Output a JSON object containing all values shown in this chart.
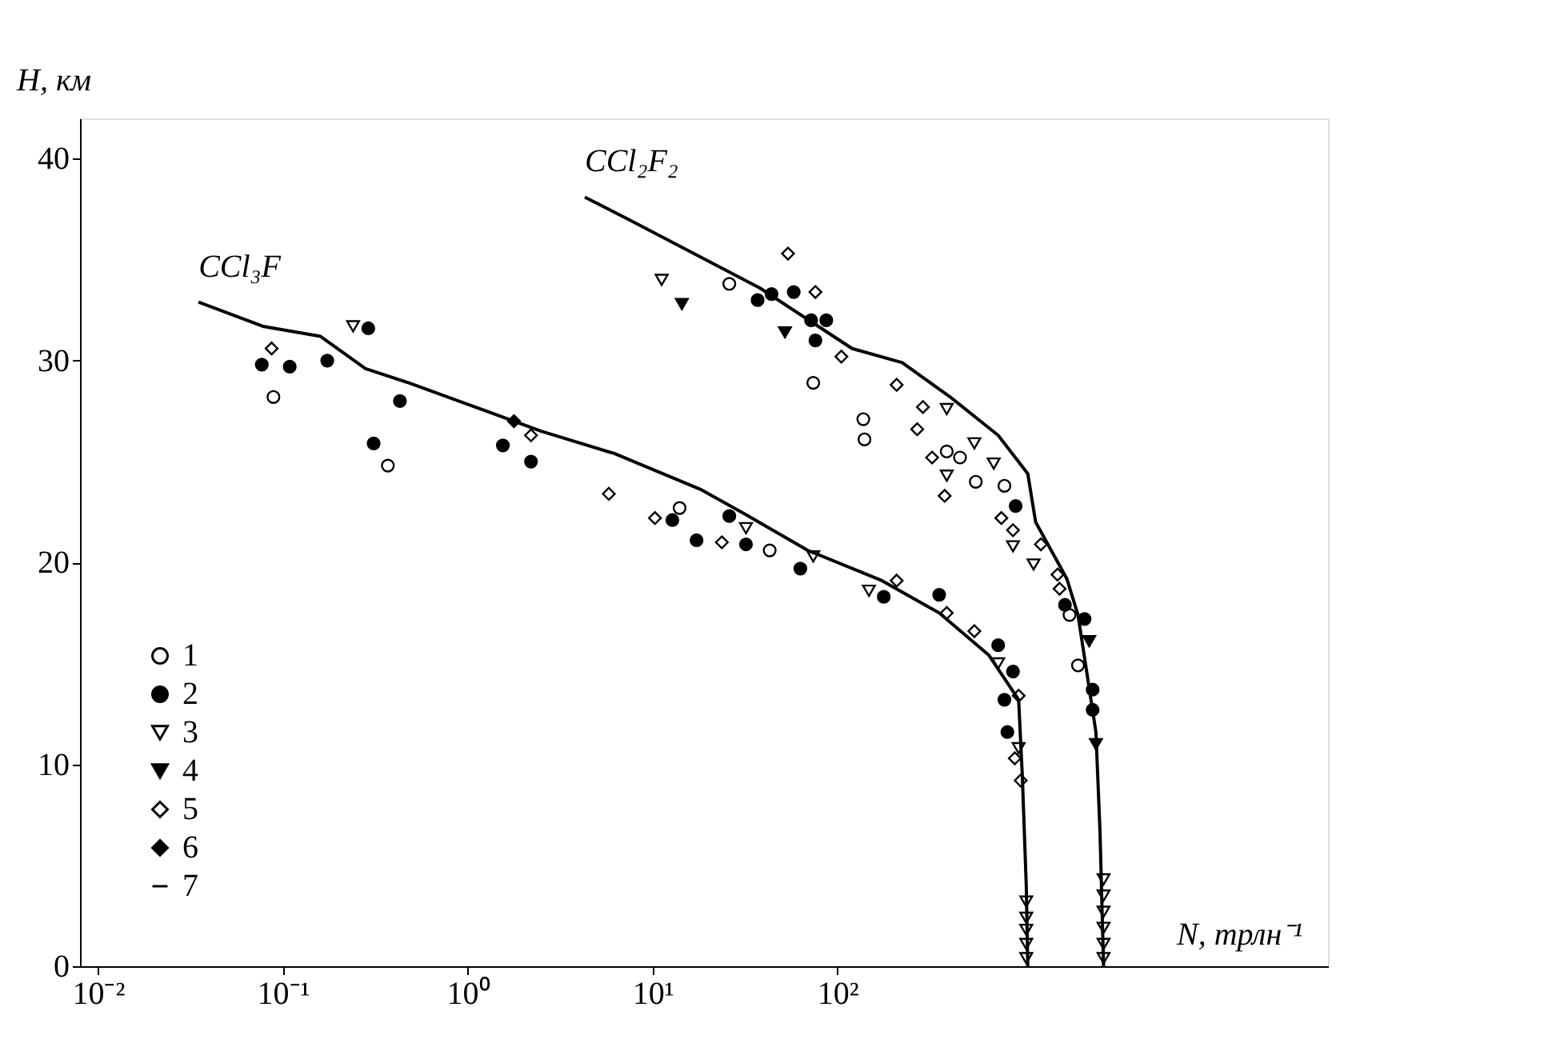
{
  "chart_data": {
    "type": "scatter",
    "xlabel": "N, трлн⁻¹",
    "ylabel": "H, км",
    "log": "x",
    "xlim": [
      0.008,
      45000
    ],
    "ylim": [
      0,
      42
    ],
    "xticks": [
      {
        "value": 0.01,
        "label": "10⁻²"
      },
      {
        "value": 0.1,
        "label": "10⁻¹"
      },
      {
        "value": 1,
        "label": "10⁰"
      },
      {
        "value": 10,
        "label": "10¹"
      },
      {
        "value": 100,
        "label": "10²"
      }
    ],
    "yticks": [
      0,
      10,
      20,
      30,
      40
    ],
    "grid": false,
    "legend": "bottom left",
    "annotations": [
      "CCl₃F",
      "CCl₂F₂"
    ],
    "series": [
      {
        "name": "1",
        "marker": "circle",
        "color": "#ffffff",
        "x": [
          0.089,
          0.37,
          14,
          43,
          26,
          74,
          138,
          140,
          390,
          460,
          560,
          800,
          1800,
          2000
        ],
        "values": [
          28.2,
          24.8,
          22.7,
          20.6,
          33.8,
          28.9,
          27.1,
          26.1,
          25.5,
          25.2,
          24.0,
          23.8,
          17.4,
          14.9
        ]
      },
      {
        "name": "2",
        "marker": "circle",
        "color": "#000000",
        "x": [
          0.077,
          0.109,
          0.174,
          0.29,
          0.43,
          0.31,
          1.55,
          2.2,
          12.8,
          17.3,
          26,
          32,
          63,
          178,
          355,
          740,
          890,
          800,
          830,
          37,
          44,
          58,
          72,
          87,
          76,
          920,
          1700,
          2170,
          2400,
          2400
        ],
        "values": [
          29.8,
          29.7,
          30.0,
          31.6,
          28.0,
          25.9,
          25.8,
          25.0,
          22.1,
          21.1,
          22.3,
          20.9,
          19.7,
          18.3,
          18.4,
          15.9,
          14.6,
          13.2,
          11.6,
          33.0,
          33.3,
          33.4,
          32.0,
          32.0,
          31.0,
          22.8,
          17.9,
          17.2,
          13.7,
          12.7
        ]
      },
      {
        "name": "3",
        "marker": "triangle",
        "color": "#ffffff",
        "x": [
          0.24,
          32,
          74,
          148,
          740,
          955,
          11.2,
          390,
          550,
          390,
          700,
          890,
          1150,
          1050,
          1050,
          1050,
          1050,
          1050,
          2750,
          2750,
          2750,
          2750,
          2750,
          2750
        ],
        "values": [
          31.7,
          21.7,
          20.3,
          18.6,
          15.0,
          10.8,
          34.0,
          27.6,
          25.9,
          24.3,
          24.9,
          20.8,
          19.9,
          3.2,
          2.4,
          1.8,
          1.1,
          0.4,
          4.3,
          3.5,
          2.7,
          1.9,
          1.1,
          0.4
        ]
      },
      {
        "name": "4",
        "marker": "triangle",
        "color": "#000000",
        "x": [
          14.4,
          52,
          2300,
          2500
        ],
        "values": [
          32.8,
          31.4,
          16.1,
          11.0
        ]
      },
      {
        "name": "5",
        "marker": "diamond",
        "color": "#ffffff",
        "x": [
          0.087,
          2.2,
          5.8,
          10.3,
          23.7,
          209,
          390,
          550,
          955,
          910,
          980,
          54,
          76,
          105,
          209,
          290,
          270,
          325,
          380,
          770,
          890,
          1260,
          1550,
          1590
        ],
        "values": [
          30.6,
          26.3,
          23.4,
          22.2,
          21.0,
          19.1,
          17.5,
          16.6,
          13.4,
          10.3,
          9.2,
          35.3,
          33.4,
          30.2,
          28.8,
          27.7,
          26.6,
          25.2,
          23.3,
          22.2,
          21.6,
          20.9,
          19.4,
          18.7
        ]
      },
      {
        "name": "6",
        "marker": "diamond",
        "color": "#000000",
        "x": [
          1.78
        ],
        "values": [
          27.0
        ]
      },
      {
        "name": "7",
        "type": "line",
        "line_style": "solid",
        "color": "#000000",
        "x": [
          0.035,
          0.078,
          0.16,
          0.28,
          0.48,
          1.26,
          2.5,
          6.2,
          18.4,
          31.6,
          69,
          174,
          355,
          660,
          955,
          1000,
          1050,
          1070
        ],
        "values": [
          32.9,
          31.7,
          31.2,
          29.6,
          28.9,
          27.5,
          26.5,
          25.4,
          23.6,
          22.4,
          20.6,
          19.1,
          17.5,
          15.4,
          13.2,
          9.4,
          4.0,
          0
        ]
      },
      {
        "type": "line",
        "line_style": "solid",
        "color": "#000000",
        "x": [
          4.3,
          7.4,
          38,
          120,
          224,
          407,
          740,
          1070,
          1180,
          1740,
          2000,
          2500,
          2630,
          2750
        ],
        "values": [
          38.1,
          37.0,
          33.6,
          30.6,
          29.9,
          28.2,
          26.3,
          24.4,
          22.0,
          19.2,
          17.4,
          11.6,
          6.7,
          0
        ]
      }
    ]
  }
}
